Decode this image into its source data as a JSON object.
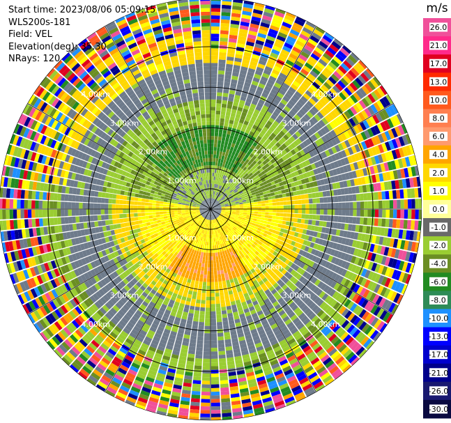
{
  "header": {
    "start_time": "Start time: 2023/08/06 05:09:15",
    "instrument": "WLS200s-181",
    "field": "Field: VEL",
    "elevation": "Elevation(deg): 35.30",
    "nrays": "NRays: 120"
  },
  "chart_data": {
    "type": "heatmap",
    "projection": "polar-ppi",
    "nrays": 120,
    "max_range_km": 5.2,
    "range_rings": [
      {
        "range_km": 1.0,
        "label": "1.00km"
      },
      {
        "range_km": 2.0,
        "label": "2.00km"
      },
      {
        "range_km": 3.0,
        "label": "3.00km"
      },
      {
        "range_km": 4.0,
        "label": "4.00km"
      }
    ],
    "colorbar": {
      "unit": "m/s",
      "ticks": [
        "26.0",
        "21.0",
        "17.0",
        "13.0",
        "10.0",
        "8.0",
        "6.0",
        "4.0",
        "2.0",
        "1.0",
        "0.0",
        "-1.0",
        "-2.0",
        "-4.0",
        "-6.0",
        "-8.0",
        "-10.0",
        "-13.0",
        "-17.0",
        "-21.0",
        "-26.0",
        "-30.0"
      ],
      "colors": [
        "#f0509a",
        "#ff2a8a",
        "#e00020",
        "#ff2a00",
        "#ff5a1e",
        "#ff7f50",
        "#ff9a6e",
        "#ffa500",
        "#ffd700",
        "#ffff00",
        "#ffff99",
        "#696969",
        "#9acd32",
        "#6b8e23",
        "#228b22",
        "#2e8b57",
        "#1e90ff",
        "#0000ff",
        "#0000cd",
        "#00008b",
        "#191970",
        "#0a0a40"
      ]
    }
  }
}
